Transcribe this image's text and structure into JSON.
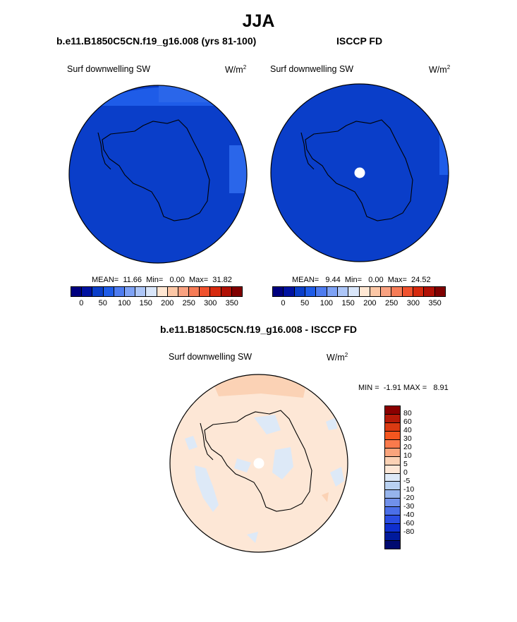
{
  "main_title": "JJA",
  "panels": {
    "model": {
      "title": "b.e11.B1850C5CN.f19_g16.008 (yrs 81-100)",
      "variable": "Surf downwelling SW",
      "units": "W/m",
      "units_exp": "2",
      "stats": "MEAN=  11.66  Min=   0.00  Max=  31.82"
    },
    "obs": {
      "title": "ISCCP FD",
      "variable": "Surf downwelling SW",
      "units": "W/m",
      "units_exp": "2",
      "stats": "MEAN=   9.44  Min=   0.00  Max=  24.52"
    },
    "diff": {
      "title": "b.e11.B1850C5CN.f19_g16.008 - ISCCP FD",
      "variable": "Surf downwelling SW",
      "units": "W/m",
      "units_exp": "2",
      "stats": "MIN =  -1.91 MAX =   8.91"
    }
  },
  "abs_colorbar": {
    "colors": [
      "#00007f",
      "#0012a0",
      "#0a3ec9",
      "#1e5ce8",
      "#4e7cf0",
      "#7ea2f5",
      "#adc6f8",
      "#d9e6fa",
      "#ffe7d3",
      "#fcc7a6",
      "#f9a281",
      "#f67c57",
      "#f0522e",
      "#d62a0f",
      "#b01005",
      "#800000"
    ],
    "tick_labels": [
      "0",
      "50",
      "100",
      "150",
      "200",
      "250",
      "300",
      "350"
    ]
  },
  "diff_colorbar": {
    "colors": [
      "#8a0000",
      "#b51a08",
      "#db3a12",
      "#f4561f",
      "#fa7a4c",
      "#faa47c",
      "#fbd2b5",
      "#fde7d6",
      "#dde9f7",
      "#b9d1f1",
      "#96b4ec",
      "#7090ea",
      "#4b6fe8",
      "#2a4de2",
      "#0f2fcf",
      "#001a9c",
      "#000a70"
    ],
    "tick_labels": [
      "80",
      "60",
      "40",
      "30",
      "20",
      "10",
      "5",
      "0",
      "-5",
      "-10",
      "-20",
      "-30",
      "-40",
      "-60",
      "-80"
    ]
  }
}
